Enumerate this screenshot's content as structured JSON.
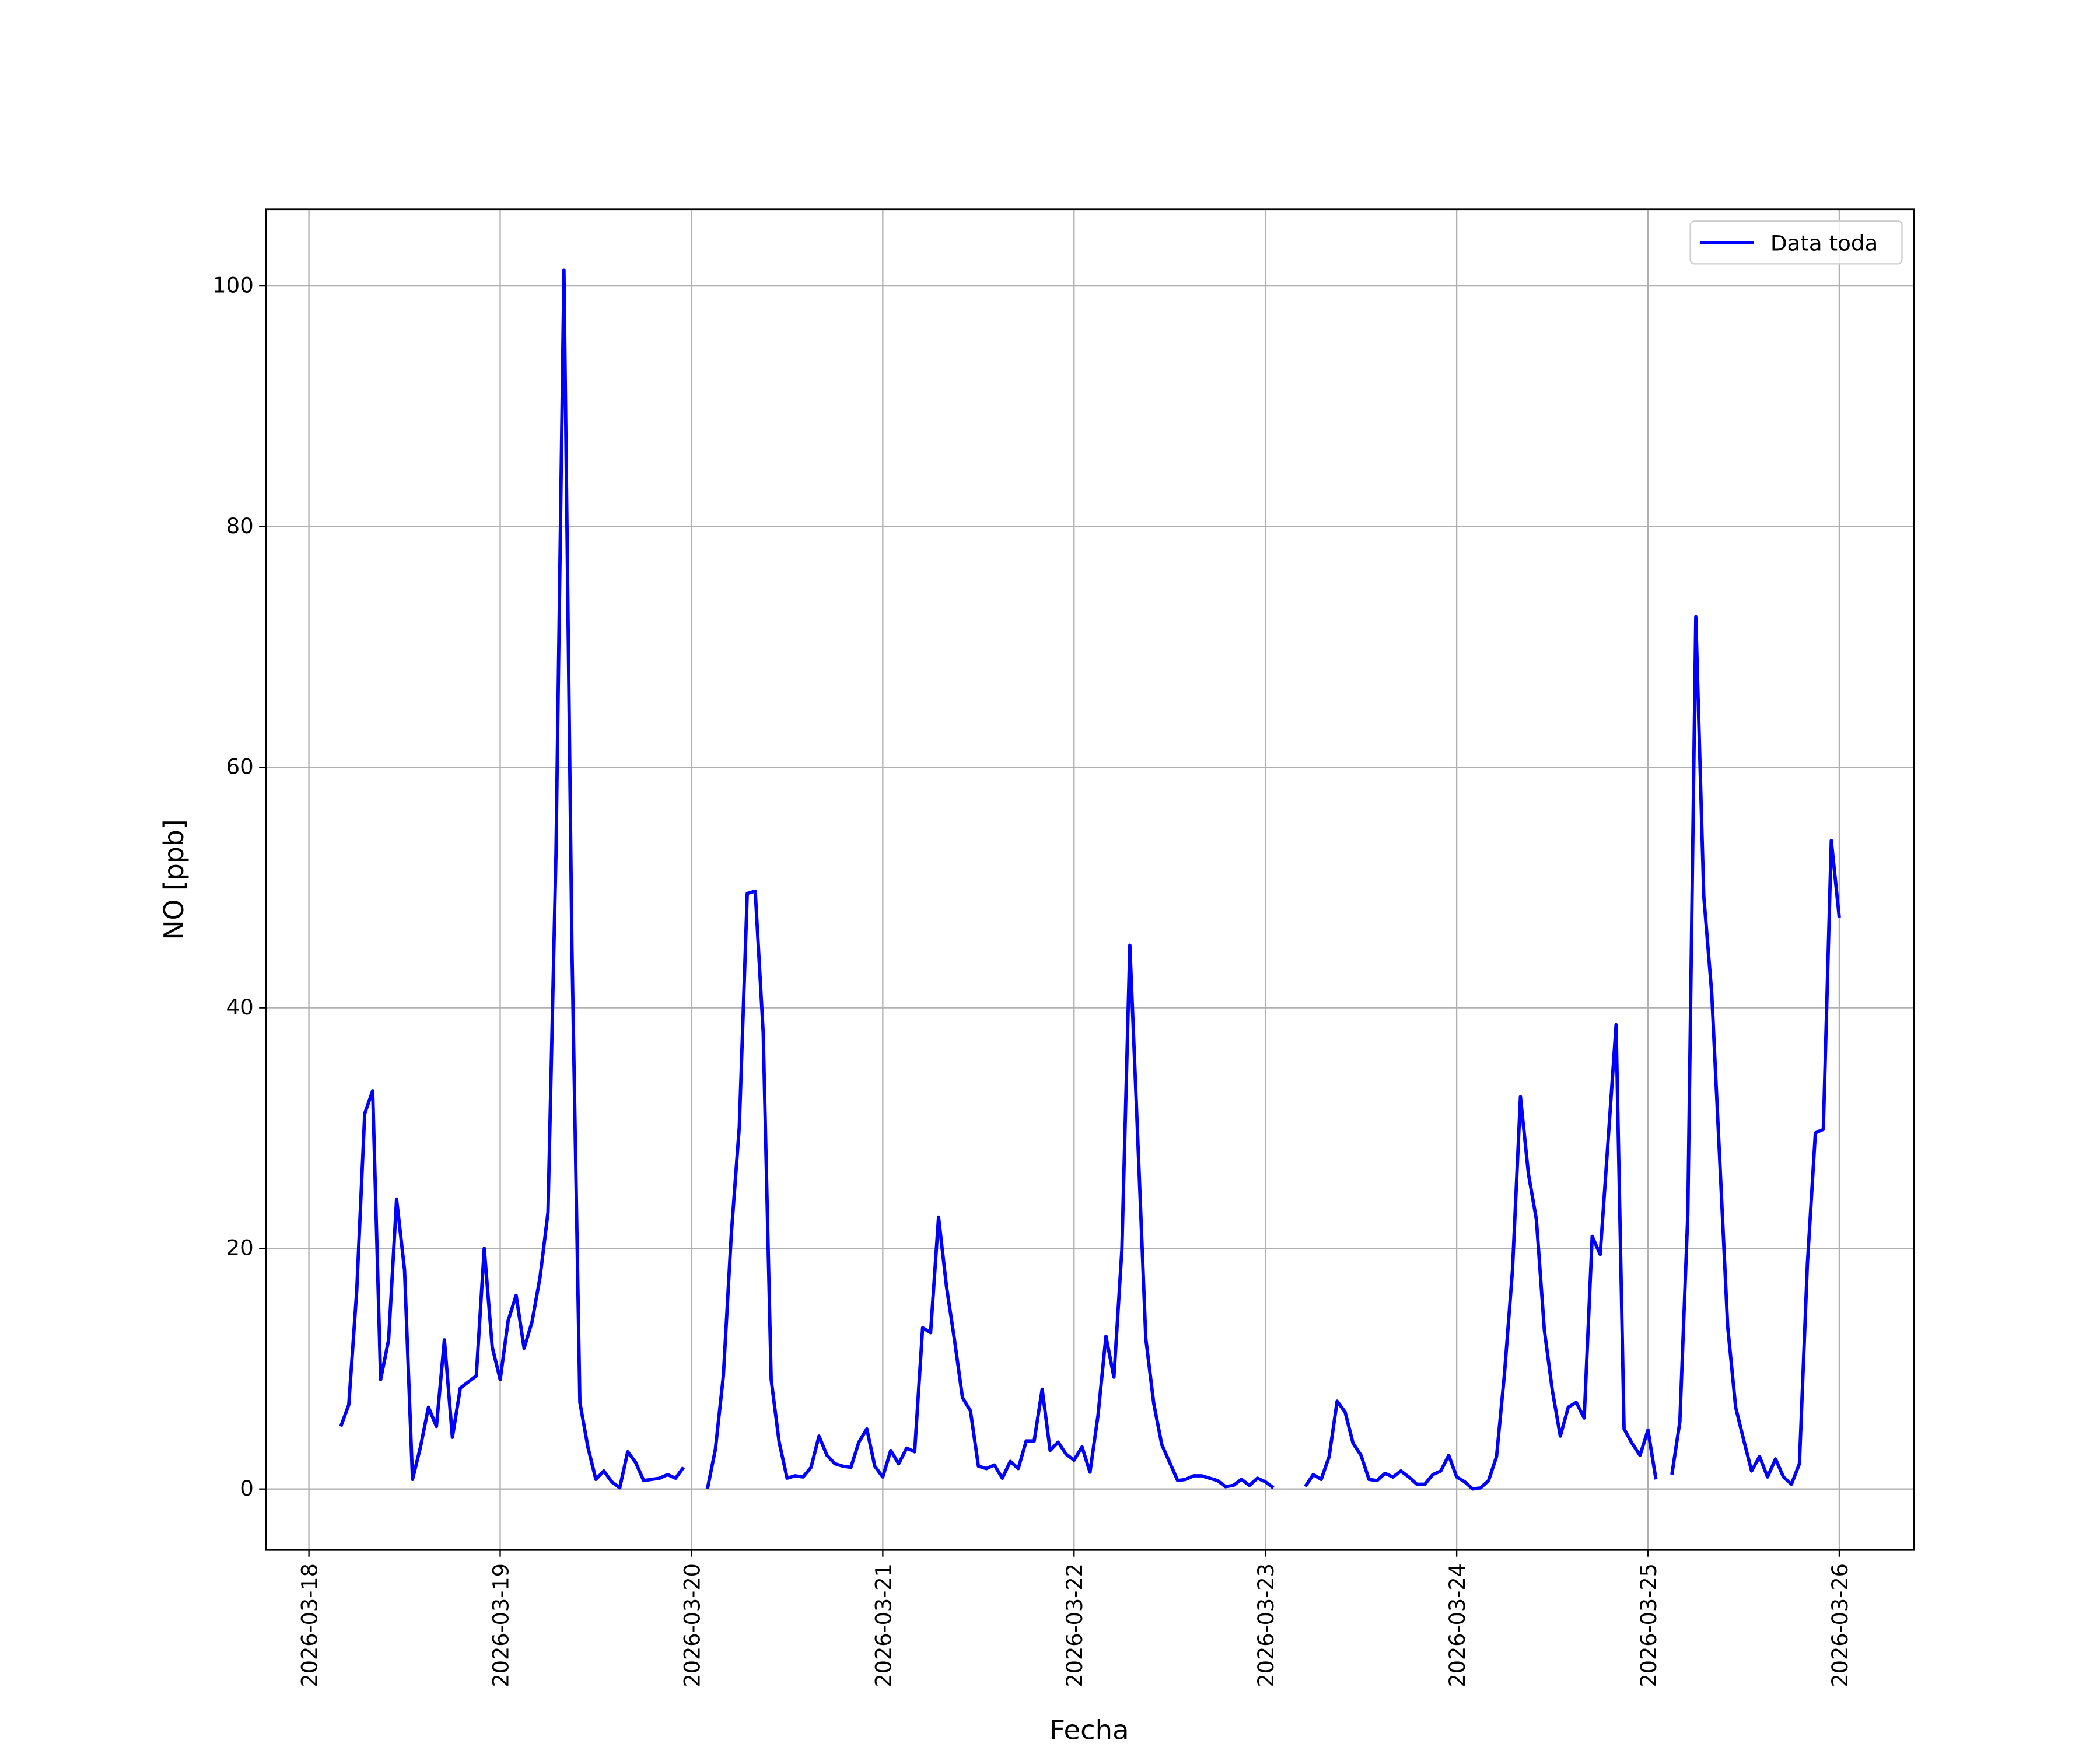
{
  "chart_data": {
    "type": "line",
    "xlabel": "Fecha",
    "ylabel": "NO [ppb]",
    "x": [
      "2026-03-18T04:00",
      "2026-03-18T05:00",
      "2026-03-18T06:00",
      "2026-03-18T07:00",
      "2026-03-18T08:00",
      "2026-03-18T09:00",
      "2026-03-18T10:00",
      "2026-03-18T11:00",
      "2026-03-18T12:00",
      "2026-03-18T13:00",
      "2026-03-18T14:00",
      "2026-03-18T15:00",
      "2026-03-18T16:00",
      "2026-03-18T17:00",
      "2026-03-18T18:00",
      "2026-03-18T19:00",
      "2026-03-18T20:00",
      "2026-03-18T21:00",
      "2026-03-18T22:00",
      "2026-03-18T23:00",
      "2026-03-19T00:00",
      "2026-03-19T01:00",
      "2026-03-19T02:00",
      "2026-03-19T03:00",
      "2026-03-19T04:00",
      "2026-03-19T05:00",
      "2026-03-19T06:00",
      "2026-03-19T07:00",
      "2026-03-19T08:00",
      "2026-03-19T09:00",
      "2026-03-19T10:00",
      "2026-03-19T11:00",
      "2026-03-19T12:00",
      "2026-03-19T13:00",
      "2026-03-19T14:00",
      "2026-03-19T15:00",
      "2026-03-19T16:00",
      "2026-03-19T17:00",
      "2026-03-19T18:00",
      "2026-03-19T19:00",
      "2026-03-19T20:00",
      "2026-03-19T21:00",
      "2026-03-19T22:00",
      "2026-03-19T23:00",
      "2026-03-20T00:00",
      "2026-03-20T01:00",
      "2026-03-20T02:00",
      "2026-03-20T03:00",
      "2026-03-20T04:00",
      "2026-03-20T05:00",
      "2026-03-20T06:00",
      "2026-03-20T07:00",
      "2026-03-20T08:00",
      "2026-03-20T09:00",
      "2026-03-20T10:00",
      "2026-03-20T11:00",
      "2026-03-20T12:00",
      "2026-03-20T13:00",
      "2026-03-20T14:00",
      "2026-03-20T15:00",
      "2026-03-20T16:00",
      "2026-03-20T17:00",
      "2026-03-20T18:00",
      "2026-03-20T19:00",
      "2026-03-20T20:00",
      "2026-03-20T21:00",
      "2026-03-20T22:00",
      "2026-03-20T23:00",
      "2026-03-21T00:00",
      "2026-03-21T01:00",
      "2026-03-21T02:00",
      "2026-03-21T03:00",
      "2026-03-21T04:00",
      "2026-03-21T05:00",
      "2026-03-21T06:00",
      "2026-03-21T07:00",
      "2026-03-21T08:00",
      "2026-03-21T09:00",
      "2026-03-21T10:00",
      "2026-03-21T11:00",
      "2026-03-21T12:00",
      "2026-03-21T13:00",
      "2026-03-21T14:00",
      "2026-03-21T15:00",
      "2026-03-21T16:00",
      "2026-03-21T17:00",
      "2026-03-21T18:00",
      "2026-03-21T19:00",
      "2026-03-21T20:00",
      "2026-03-21T21:00",
      "2026-03-21T22:00",
      "2026-03-21T23:00",
      "2026-03-22T00:00",
      "2026-03-22T01:00",
      "2026-03-22T02:00",
      "2026-03-22T03:00",
      "2026-03-22T04:00",
      "2026-03-22T05:00",
      "2026-03-22T06:00",
      "2026-03-22T07:00",
      "2026-03-22T08:00",
      "2026-03-22T09:00",
      "2026-03-22T10:00",
      "2026-03-22T11:00",
      "2026-03-22T12:00",
      "2026-03-22T13:00",
      "2026-03-22T14:00",
      "2026-03-22T15:00",
      "2026-03-22T16:00",
      "2026-03-22T17:00",
      "2026-03-22T18:00",
      "2026-03-22T19:00",
      "2026-03-22T20:00",
      "2026-03-22T21:00",
      "2026-03-22T22:00",
      "2026-03-22T23:00",
      "2026-03-23T00:00",
      "2026-03-23T01:00",
      "2026-03-23T02:00",
      "2026-03-23T03:00",
      "2026-03-23T04:00",
      "2026-03-23T05:00",
      "2026-03-23T06:00",
      "2026-03-23T07:00",
      "2026-03-23T08:00",
      "2026-03-23T09:00",
      "2026-03-23T10:00",
      "2026-03-23T11:00",
      "2026-03-23T12:00",
      "2026-03-23T13:00",
      "2026-03-23T14:00",
      "2026-03-23T15:00",
      "2026-03-23T16:00",
      "2026-03-23T17:00",
      "2026-03-23T18:00",
      "2026-03-23T19:00",
      "2026-03-23T20:00",
      "2026-03-23T21:00",
      "2026-03-23T22:00",
      "2026-03-23T23:00",
      "2026-03-24T00:00",
      "2026-03-24T01:00",
      "2026-03-24T02:00",
      "2026-03-24T03:00",
      "2026-03-24T04:00",
      "2026-03-24T05:00",
      "2026-03-24T06:00",
      "2026-03-24T07:00",
      "2026-03-24T08:00",
      "2026-03-24T09:00",
      "2026-03-24T10:00",
      "2026-03-24T11:00",
      "2026-03-24T12:00",
      "2026-03-24T13:00",
      "2026-03-24T14:00",
      "2026-03-24T15:00",
      "2026-03-24T16:00",
      "2026-03-24T17:00",
      "2026-03-24T18:00",
      "2026-03-24T19:00",
      "2026-03-24T20:00",
      "2026-03-24T21:00",
      "2026-03-24T22:00",
      "2026-03-24T23:00",
      "2026-03-25T00:00",
      "2026-03-25T01:00",
      "2026-03-25T02:00",
      "2026-03-25T03:00",
      "2026-03-25T04:00",
      "2026-03-25T05:00",
      "2026-03-25T06:00",
      "2026-03-25T07:00",
      "2026-03-25T08:00",
      "2026-03-25T09:00",
      "2026-03-25T10:00",
      "2026-03-25T11:00",
      "2026-03-25T12:00",
      "2026-03-25T13:00",
      "2026-03-25T14:00",
      "2026-03-25T15:00",
      "2026-03-25T16:00",
      "2026-03-25T17:00",
      "2026-03-25T18:00",
      "2026-03-25T19:00",
      "2026-03-25T20:00",
      "2026-03-25T21:00",
      "2026-03-25T22:00",
      "2026-03-25T23:00",
      "2026-03-26T00:00"
    ],
    "series": [
      {
        "name": "Data toda",
        "color": "#0000ff",
        "values": [
          5.2,
          7.0,
          16.5,
          31.2,
          33.1,
          9.1,
          12.4,
          24.1,
          18.2,
          0.8,
          3.5,
          6.8,
          5.2,
          12.4,
          4.3,
          8.4,
          8.9,
          9.4,
          20.0,
          11.8,
          9.1,
          14.0,
          16.1,
          11.7,
          13.9,
          17.6,
          23.0,
          52.8,
          101.3,
          45.1,
          7.2,
          3.5,
          0.8,
          1.5,
          0.6,
          0.1,
          3.1,
          2.2,
          0.7,
          0.8,
          0.9,
          1.2,
          0.9,
          1.8,
          null,
          null,
          0.0,
          3.3,
          9.4,
          21.2,
          30.1,
          49.5,
          49.7,
          37.9,
          9.1,
          3.9,
          0.9,
          1.1,
          1.0,
          1.8,
          4.4,
          2.8,
          2.1,
          1.9,
          1.8,
          3.9,
          5.0,
          1.9,
          1.0,
          3.2,
          2.1,
          3.4,
          3.1,
          13.4,
          13.0,
          22.6,
          16.8,
          12.4,
          7.6,
          6.5,
          1.9,
          1.7,
          2.0,
          0.9,
          2.3,
          1.7,
          4.0,
          4.0,
          8.3,
          3.2,
          3.9,
          2.9,
          2.4,
          3.5,
          1.4,
          6.1,
          12.7,
          9.3,
          19.9,
          45.2,
          29.0,
          12.5,
          7.1,
          3.7,
          2.2,
          0.7,
          0.8,
          1.1,
          1.1,
          0.9,
          0.7,
          0.2,
          0.3,
          0.8,
          0.3,
          0.9,
          0.6,
          0.1,
          null,
          null,
          null,
          0.2,
          1.2,
          0.8,
          2.7,
          7.3,
          6.4,
          3.8,
          2.8,
          0.8,
          0.7,
          1.3,
          1.0,
          1.5,
          1.0,
          0.4,
          0.4,
          1.2,
          1.5,
          2.8,
          1.0,
          0.6,
          0.0,
          0.1,
          0.7,
          2.7,
          9.6,
          18.2,
          32.6,
          26.2,
          22.4,
          13.2,
          8.2,
          4.4,
          6.8,
          7.2,
          5.9,
          21.0,
          19.5,
          29.0,
          38.6,
          5.0,
          3.8,
          2.8,
          4.9,
          0.8,
          null,
          1.2,
          5.6,
          22.9,
          72.5,
          49.3,
          41.2,
          27.4,
          13.5,
          6.8,
          4.1,
          1.5,
          2.7,
          1.0,
          2.5,
          1.0,
          0.4,
          2.1,
          18.7,
          29.6,
          29.9,
          53.9,
          47.5
        ]
      }
    ],
    "xlim": [
      "2026-03-17T18:36",
      "2026-03-26T09:24"
    ],
    "xticks": [
      "2026-03-18",
      "2026-03-19",
      "2026-03-20",
      "2026-03-21",
      "2026-03-22",
      "2026-03-23",
      "2026-03-24",
      "2026-03-25",
      "2026-03-26"
    ],
    "ylim": [
      -5.07,
      106.37
    ],
    "yticks": [
      0,
      20,
      40,
      60,
      80,
      100
    ],
    "grid": true,
    "legend": "upper right"
  }
}
